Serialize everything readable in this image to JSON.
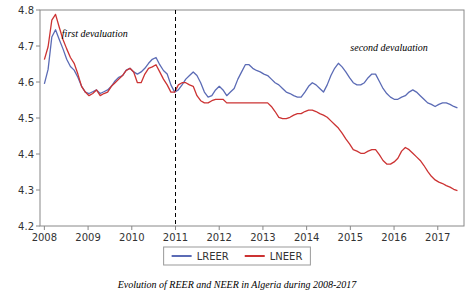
{
  "chart_data": {
    "type": "line",
    "caption": "Evolution of REER and NEER in Algeria during 2008-2017",
    "x": [
      2008,
      2008.0851,
      2008.1703,
      2008.2554,
      2008.3405,
      2008.4257,
      2008.5108,
      2008.5959,
      2008.6811,
      2008.7662,
      2008.8514,
      2008.9365,
      2009.0216,
      2009.1068,
      2009.1919,
      2009.277,
      2009.3622,
      2009.4473,
      2009.5324,
      2009.6176,
      2009.7027,
      2009.7878,
      2009.873,
      2009.9581,
      2010.0432,
      2010.1284,
      2010.2135,
      2010.2986,
      2010.3838,
      2010.4689,
      2010.5541,
      2010.6392,
      2010.7243,
      2010.8095,
      2010.8946,
      2010.9797,
      2011.0649,
      2011.15,
      2011.2351,
      2011.3203,
      2011.4054,
      2011.4905,
      2011.5757,
      2011.6608,
      2011.7459,
      2011.8311,
      2011.9162,
      2012.0014,
      2012.0865,
      2012.1716,
      2012.2568,
      2012.3419,
      2012.427,
      2012.5122,
      2012.5973,
      2012.6824,
      2012.7676,
      2012.8527,
      2012.9378,
      2013.023,
      2013.1081,
      2013.1932,
      2013.2784,
      2013.3635,
      2013.4486,
      2013.5338,
      2013.6189,
      2013.7041,
      2013.7892,
      2013.8743,
      2013.9595,
      2014.0446,
      2014.1297,
      2014.2149,
      2014.3,
      2014.3851,
      2014.4703,
      2014.5554,
      2014.6405,
      2014.7257,
      2014.8108,
      2014.8959,
      2014.9811,
      2015.0662,
      2015.1514,
      2015.2365,
      2015.3216,
      2015.4068,
      2015.4919,
      2015.577,
      2015.6622,
      2015.7473,
      2015.8324,
      2015.9176,
      2016.0027,
      2016.0878,
      2016.173,
      2016.2581,
      2016.3432,
      2016.4284,
      2016.5135,
      2016.5986,
      2016.6838,
      2016.7689,
      2016.8541,
      2016.9392,
      2017.0243,
      2017.1095,
      2017.1946,
      2017.2797,
      2017.3649,
      2017.45
    ],
    "series": [
      {
        "name": "LREER",
        "color": "#5B6BB5",
        "values": [
          4.595,
          4.635,
          4.725,
          4.745,
          4.718,
          4.692,
          4.663,
          4.643,
          4.633,
          4.613,
          4.588,
          4.572,
          4.568,
          4.573,
          4.578,
          4.568,
          4.573,
          4.578,
          4.588,
          4.603,
          4.613,
          4.618,
          4.633,
          4.638,
          4.628,
          4.622,
          4.628,
          4.638,
          4.652,
          4.663,
          4.668,
          4.648,
          4.632,
          4.622,
          4.592,
          4.572,
          4.578,
          4.592,
          4.608,
          4.618,
          4.628,
          4.618,
          4.598,
          4.572,
          4.558,
          4.562,
          4.578,
          4.588,
          4.578,
          4.562,
          4.572,
          4.582,
          4.608,
          4.628,
          4.648,
          4.648,
          4.638,
          4.632,
          4.628,
          4.622,
          4.618,
          4.608,
          4.598,
          4.592,
          4.582,
          4.572,
          4.568,
          4.562,
          4.558,
          4.558,
          4.572,
          4.588,
          4.598,
          4.592,
          4.582,
          4.572,
          4.592,
          4.618,
          4.638,
          4.652,
          4.642,
          4.628,
          4.612,
          4.598,
          4.592,
          4.592,
          4.598,
          4.612,
          4.622,
          4.622,
          4.602,
          4.582,
          4.568,
          4.558,
          4.552,
          4.552,
          4.558,
          4.562,
          4.572,
          4.578,
          4.572,
          4.562,
          4.552,
          4.542,
          4.538,
          4.532,
          4.538,
          4.542,
          4.542,
          4.538,
          4.532,
          4.528
        ]
      },
      {
        "name": "LNEER",
        "color": "#CC3333",
        "values": [
          4.662,
          4.698,
          4.772,
          4.788,
          4.752,
          4.718,
          4.692,
          4.668,
          4.652,
          4.622,
          4.588,
          4.572,
          4.562,
          4.568,
          4.578,
          4.562,
          4.568,
          4.572,
          4.588,
          4.598,
          4.608,
          4.618,
          4.632,
          4.638,
          4.628,
          4.598,
          4.598,
          4.622,
          4.638,
          4.642,
          4.648,
          4.628,
          4.608,
          4.592,
          4.572,
          4.572,
          4.592,
          4.598,
          4.598,
          4.592,
          4.588,
          4.562,
          4.548,
          4.542,
          4.542,
          4.548,
          4.552,
          4.552,
          4.552,
          4.542,
          4.542,
          4.542,
          4.542,
          4.542,
          4.542,
          4.542,
          4.542,
          4.542,
          4.542,
          4.542,
          4.542,
          4.532,
          4.518,
          4.502,
          4.498,
          4.498,
          4.502,
          4.508,
          4.512,
          4.512,
          4.518,
          4.522,
          4.522,
          4.518,
          4.512,
          4.508,
          4.502,
          4.492,
          4.482,
          4.472,
          4.458,
          4.442,
          4.428,
          4.412,
          4.408,
          4.402,
          4.402,
          4.408,
          4.412,
          4.412,
          4.398,
          4.382,
          4.372,
          4.372,
          4.378,
          4.388,
          4.408,
          4.418,
          4.412,
          4.402,
          4.392,
          4.382,
          4.368,
          4.352,
          4.338,
          4.328,
          4.322,
          4.318,
          4.312,
          4.308,
          4.302,
          4.298
        ]
      }
    ],
    "vline": 2011.0,
    "annotations": [
      {
        "text": "first devaluation",
        "x": 2008.4,
        "y": 4.726
      },
      {
        "text": "second devaluation",
        "x": 2015.0,
        "y": 4.686
      }
    ],
    "xlim": [
      2007.9,
      2017.6
    ],
    "xticks": [
      2008,
      2009,
      2010,
      2011,
      2012,
      2013,
      2014,
      2015,
      2016,
      2017
    ],
    "ylim": [
      4.2,
      4.8
    ],
    "yticks": [
      4.2,
      4.3,
      4.4,
      4.5,
      4.6,
      4.7,
      4.8
    ],
    "grid": false,
    "legend": "bottom"
  }
}
